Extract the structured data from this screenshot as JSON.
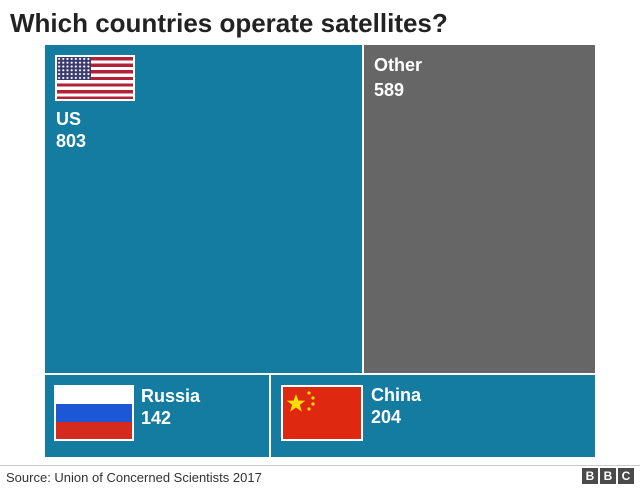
{
  "header": {
    "title": "Which countries operate satellites?"
  },
  "chart_data": {
    "type": "treemap",
    "title": "Which countries operate satellites?",
    "items": [
      {
        "label": "US",
        "value": 803,
        "value_label": "803",
        "color": "#137ca0",
        "icon": "us-flag-icon"
      },
      {
        "label": "Other",
        "value": 589,
        "value_label": "589",
        "color": "#666666"
      },
      {
        "label": "Russia",
        "value": 142,
        "value_label": "142",
        "color": "#137ca0",
        "icon": "russia-flag-icon"
      },
      {
        "label": "China",
        "value": 204,
        "value_label": "204",
        "color": "#137ca0",
        "icon": "china-flag-icon"
      }
    ]
  },
  "footer": {
    "source": "Source: Union of Concerned Scientists 2017",
    "logo_letters": [
      "B",
      "B",
      "C"
    ]
  }
}
